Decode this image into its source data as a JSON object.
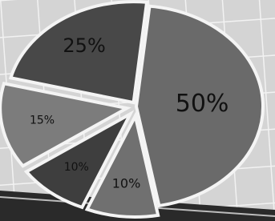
{
  "chart_data": {
    "type": "pie",
    "values": [
      50,
      10,
      10,
      15,
      25
    ],
    "value_labels": [
      "50%",
      "10%",
      "10%",
      "15%",
      "25%"
    ],
    "colors": [
      "#6a6a6a",
      "#707070",
      "#3e3e3e",
      "#7c7c7c",
      "#484848"
    ]
  }
}
